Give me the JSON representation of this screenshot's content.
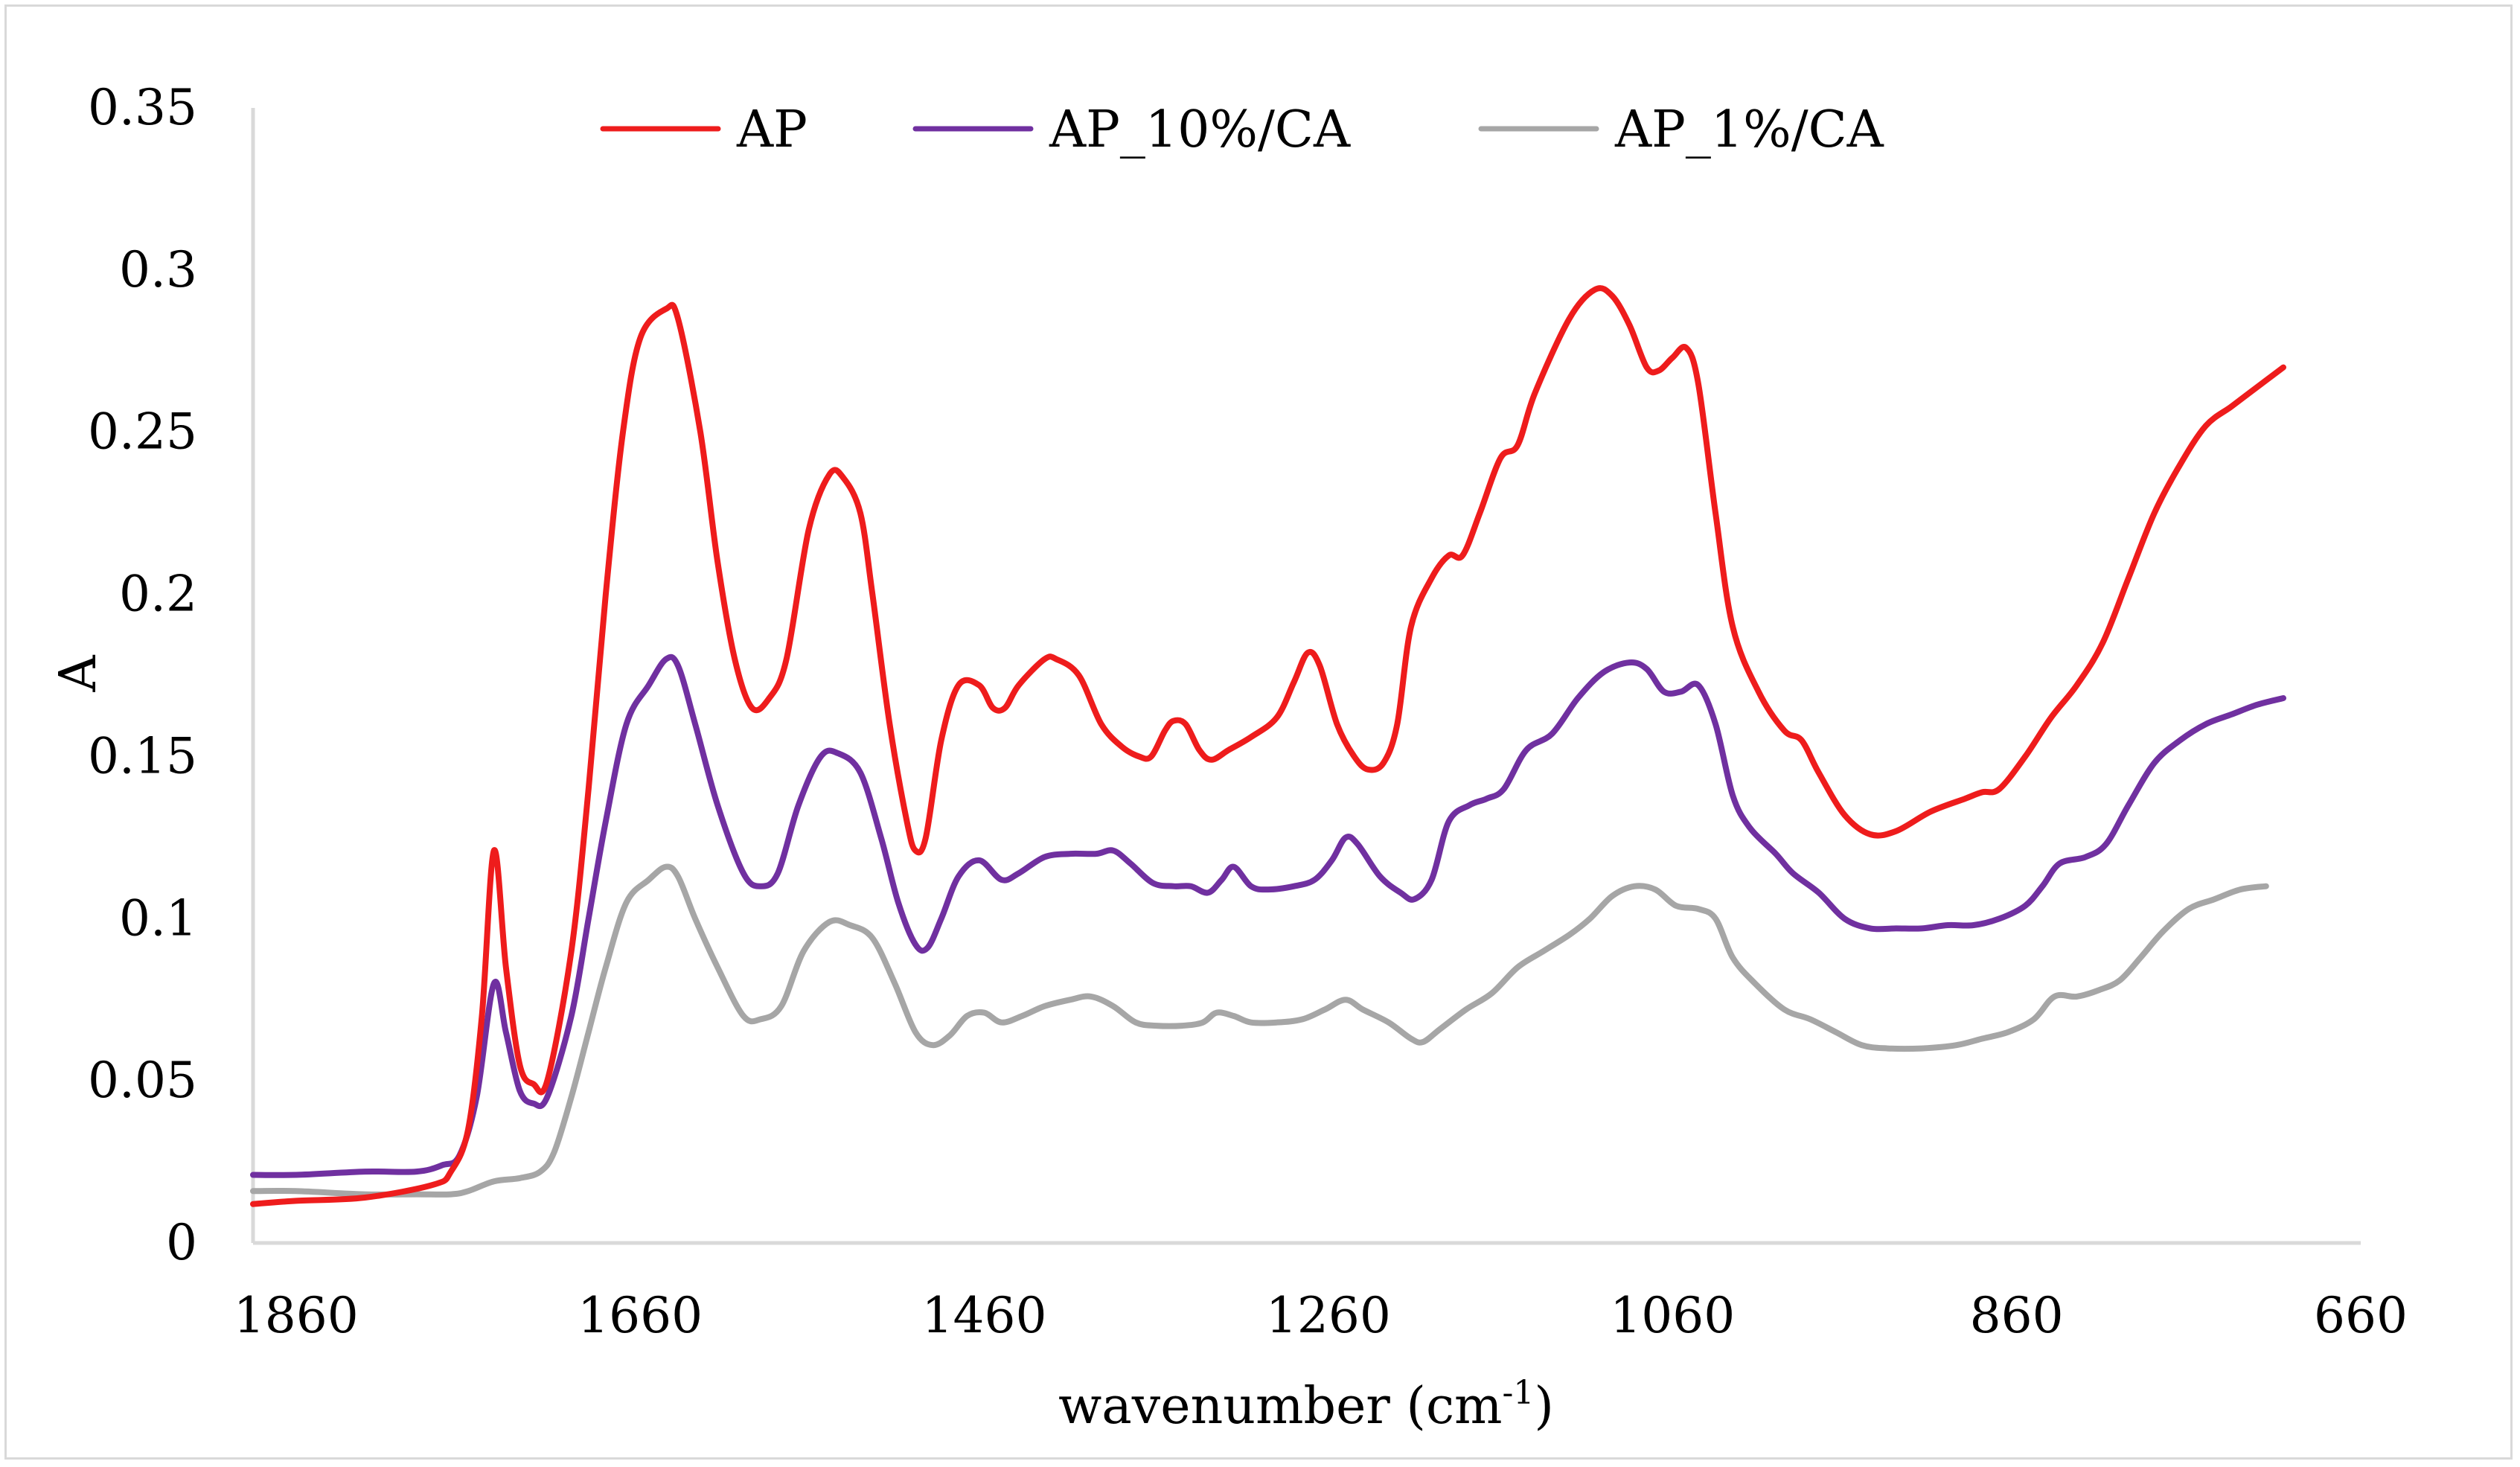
{
  "chart_data": {
    "type": "line",
    "title": "",
    "xlabel": "wavenumber (cm",
    "xlabel_sup": "-1",
    "xlabel_close": ")",
    "ylabel": "A",
    "xlim": [
      1885,
      660
    ],
    "ylim": [
      0,
      0.35
    ],
    "x_reversed": true,
    "grid": false,
    "legend_position": "top",
    "x_ticks": [
      1860,
      1660,
      1460,
      1260,
      1060,
      860,
      660
    ],
    "y_ticks": [
      0,
      0.05,
      0.1,
      0.15,
      0.2,
      0.25,
      0.3,
      0.35
    ],
    "y_tick_labels": [
      "0",
      "0.05",
      "0.1",
      "0.15",
      "0.2",
      "0.25",
      "0.3",
      "0.35"
    ],
    "series": [
      {
        "name": "AP",
        "color": "#ee1c1c",
        "points": [
          [
            1885,
            0.012
          ],
          [
            1860,
            0.013
          ],
          [
            1820,
            0.014
          ],
          [
            1780,
            0.018
          ],
          [
            1770,
            0.022
          ],
          [
            1760,
            0.035
          ],
          [
            1752,
            0.07
          ],
          [
            1745,
            0.121
          ],
          [
            1738,
            0.085
          ],
          [
            1730,
            0.055
          ],
          [
            1722,
            0.049
          ],
          [
            1714,
            0.05
          ],
          [
            1700,
            0.09
          ],
          [
            1690,
            0.14
          ],
          [
            1680,
            0.2
          ],
          [
            1670,
            0.25
          ],
          [
            1660,
            0.279
          ],
          [
            1645,
            0.288
          ],
          [
            1638,
            0.285
          ],
          [
            1625,
            0.25
          ],
          [
            1615,
            0.21
          ],
          [
            1605,
            0.18
          ],
          [
            1595,
            0.165
          ],
          [
            1585,
            0.168
          ],
          [
            1575,
            0.18
          ],
          [
            1562,
            0.22
          ],
          [
            1550,
            0.237
          ],
          [
            1542,
            0.236
          ],
          [
            1532,
            0.225
          ],
          [
            1525,
            0.2
          ],
          [
            1515,
            0.16
          ],
          [
            1505,
            0.13
          ],
          [
            1500,
            0.121
          ],
          [
            1494,
            0.125
          ],
          [
            1485,
            0.155
          ],
          [
            1475,
            0.172
          ],
          [
            1463,
            0.172
          ],
          [
            1455,
            0.165
          ],
          [
            1448,
            0.165
          ],
          [
            1440,
            0.172
          ],
          [
            1425,
            0.18
          ],
          [
            1418,
            0.18
          ],
          [
            1405,
            0.175
          ],
          [
            1392,
            0.16
          ],
          [
            1380,
            0.153
          ],
          [
            1370,
            0.15
          ],
          [
            1363,
            0.15
          ],
          [
            1355,
            0.158
          ],
          [
            1350,
            0.161
          ],
          [
            1343,
            0.16
          ],
          [
            1335,
            0.152
          ],
          [
            1328,
            0.149
          ],
          [
            1318,
            0.152
          ],
          [
            1305,
            0.156
          ],
          [
            1290,
            0.162
          ],
          [
            1280,
            0.173
          ],
          [
            1272,
            0.182
          ],
          [
            1265,
            0.178
          ],
          [
            1255,
            0.16
          ],
          [
            1245,
            0.15
          ],
          [
            1237,
            0.146
          ],
          [
            1228,
            0.148
          ],
          [
            1220,
            0.16
          ],
          [
            1212,
            0.19
          ],
          [
            1200,
            0.205
          ],
          [
            1190,
            0.212
          ],
          [
            1182,
            0.212
          ],
          [
            1172,
            0.225
          ],
          [
            1160,
            0.242
          ],
          [
            1150,
            0.246
          ],
          [
            1140,
            0.262
          ],
          [
            1120,
            0.285
          ],
          [
            1105,
            0.294
          ],
          [
            1095,
            0.292
          ],
          [
            1085,
            0.283
          ],
          [
            1075,
            0.27
          ],
          [
            1068,
            0.269
          ],
          [
            1060,
            0.273
          ],
          [
            1052,
            0.276
          ],
          [
            1045,
            0.265
          ],
          [
            1035,
            0.225
          ],
          [
            1025,
            0.19
          ],
          [
            1010,
            0.17
          ],
          [
            995,
            0.158
          ],
          [
            985,
            0.155
          ],
          [
            975,
            0.145
          ],
          [
            960,
            0.132
          ],
          [
            945,
            0.126
          ],
          [
            930,
            0.127
          ],
          [
            910,
            0.133
          ],
          [
            890,
            0.137
          ],
          [
            880,
            0.139
          ],
          [
            870,
            0.14
          ],
          [
            855,
            0.15
          ],
          [
            840,
            0.162
          ],
          [
            825,
            0.172
          ],
          [
            810,
            0.185
          ],
          [
            795,
            0.205
          ],
          [
            780,
            0.225
          ],
          [
            765,
            0.24
          ],
          [
            750,
            0.252
          ],
          [
            735,
            0.258
          ],
          [
            720,
            0.264
          ],
          [
            705,
            0.27
          ]
        ]
      },
      {
        "name": "AP_10%/CA",
        "color": "#7030a0",
        "points": [
          [
            1885,
            0.021
          ],
          [
            1860,
            0.021
          ],
          [
            1820,
            0.022
          ],
          [
            1790,
            0.022
          ],
          [
            1775,
            0.024
          ],
          [
            1765,
            0.027
          ],
          [
            1755,
            0.045
          ],
          [
            1745,
            0.08
          ],
          [
            1738,
            0.065
          ],
          [
            1730,
            0.047
          ],
          [
            1722,
            0.043
          ],
          [
            1714,
            0.045
          ],
          [
            1700,
            0.07
          ],
          [
            1690,
            0.1
          ],
          [
            1680,
            0.13
          ],
          [
            1668,
            0.16
          ],
          [
            1655,
            0.172
          ],
          [
            1645,
            0.18
          ],
          [
            1638,
            0.178
          ],
          [
            1628,
            0.16
          ],
          [
            1615,
            0.135
          ],
          [
            1600,
            0.114
          ],
          [
            1590,
            0.11
          ],
          [
            1580,
            0.114
          ],
          [
            1568,
            0.135
          ],
          [
            1555,
            0.15
          ],
          [
            1545,
            0.151
          ],
          [
            1532,
            0.145
          ],
          [
            1520,
            0.125
          ],
          [
            1510,
            0.105
          ],
          [
            1500,
            0.092
          ],
          [
            1493,
            0.091
          ],
          [
            1485,
            0.1
          ],
          [
            1475,
            0.113
          ],
          [
            1463,
            0.118
          ],
          [
            1450,
            0.112
          ],
          [
            1440,
            0.114
          ],
          [
            1425,
            0.119
          ],
          [
            1410,
            0.12
          ],
          [
            1395,
            0.12
          ],
          [
            1385,
            0.121
          ],
          [
            1375,
            0.117
          ],
          [
            1362,
            0.111
          ],
          [
            1350,
            0.11
          ],
          [
            1340,
            0.11
          ],
          [
            1330,
            0.108
          ],
          [
            1322,
            0.112
          ],
          [
            1315,
            0.116
          ],
          [
            1305,
            0.11
          ],
          [
            1295,
            0.109
          ],
          [
            1280,
            0.11
          ],
          [
            1268,
            0.112
          ],
          [
            1258,
            0.118
          ],
          [
            1250,
            0.125
          ],
          [
            1243,
            0.123
          ],
          [
            1230,
            0.113
          ],
          [
            1218,
            0.108
          ],
          [
            1210,
            0.106
          ],
          [
            1200,
            0.112
          ],
          [
            1190,
            0.13
          ],
          [
            1178,
            0.135
          ],
          [
            1168,
            0.137
          ],
          [
            1158,
            0.14
          ],
          [
            1145,
            0.152
          ],
          [
            1130,
            0.157
          ],
          [
            1115,
            0.168
          ],
          [
            1100,
            0.176
          ],
          [
            1085,
            0.179
          ],
          [
            1075,
            0.177
          ],
          [
            1065,
            0.17
          ],
          [
            1055,
            0.17
          ],
          [
            1045,
            0.172
          ],
          [
            1035,
            0.16
          ],
          [
            1025,
            0.138
          ],
          [
            1015,
            0.128
          ],
          [
            1000,
            0.12
          ],
          [
            990,
            0.114
          ],
          [
            975,
            0.108
          ],
          [
            960,
            0.1
          ],
          [
            945,
            0.097
          ],
          [
            930,
            0.097
          ],
          [
            915,
            0.097
          ],
          [
            900,
            0.098
          ],
          [
            885,
            0.098
          ],
          [
            870,
            0.1
          ],
          [
            855,
            0.104
          ],
          [
            845,
            0.11
          ],
          [
            835,
            0.117
          ],
          [
            820,
            0.119
          ],
          [
            808,
            0.123
          ],
          [
            795,
            0.135
          ],
          [
            780,
            0.148
          ],
          [
            765,
            0.155
          ],
          [
            750,
            0.16
          ],
          [
            735,
            0.163
          ],
          [
            720,
            0.166
          ],
          [
            705,
            0.168
          ]
        ]
      },
      {
        "name": "AP_1%/CA",
        "color": "#a6a6a6",
        "points": [
          [
            1885,
            0.016
          ],
          [
            1860,
            0.016
          ],
          [
            1820,
            0.015
          ],
          [
            1790,
            0.015
          ],
          [
            1770,
            0.015
          ],
          [
            1760,
            0.016
          ],
          [
            1745,
            0.019
          ],
          [
            1730,
            0.02
          ],
          [
            1718,
            0.022
          ],
          [
            1710,
            0.028
          ],
          [
            1700,
            0.045
          ],
          [
            1690,
            0.065
          ],
          [
            1680,
            0.085
          ],
          [
            1668,
            0.105
          ],
          [
            1655,
            0.112
          ],
          [
            1645,
            0.116
          ],
          [
            1638,
            0.113
          ],
          [
            1628,
            0.1
          ],
          [
            1615,
            0.085
          ],
          [
            1600,
            0.07
          ],
          [
            1590,
            0.069
          ],
          [
            1578,
            0.073
          ],
          [
            1565,
            0.09
          ],
          [
            1550,
            0.099
          ],
          [
            1538,
            0.098
          ],
          [
            1525,
            0.094
          ],
          [
            1512,
            0.08
          ],
          [
            1500,
            0.065
          ],
          [
            1490,
            0.061
          ],
          [
            1480,
            0.064
          ],
          [
            1470,
            0.07
          ],
          [
            1460,
            0.071
          ],
          [
            1450,
            0.068
          ],
          [
            1438,
            0.07
          ],
          [
            1425,
            0.073
          ],
          [
            1410,
            0.075
          ],
          [
            1398,
            0.076
          ],
          [
            1385,
            0.073
          ],
          [
            1372,
            0.068
          ],
          [
            1360,
            0.067
          ],
          [
            1345,
            0.067
          ],
          [
            1333,
            0.068
          ],
          [
            1325,
            0.071
          ],
          [
            1315,
            0.07
          ],
          [
            1305,
            0.068
          ],
          [
            1290,
            0.068
          ],
          [
            1275,
            0.069
          ],
          [
            1262,
            0.072
          ],
          [
            1250,
            0.075
          ],
          [
            1240,
            0.072
          ],
          [
            1225,
            0.068
          ],
          [
            1212,
            0.063
          ],
          [
            1205,
            0.062
          ],
          [
            1195,
            0.066
          ],
          [
            1180,
            0.072
          ],
          [
            1165,
            0.077
          ],
          [
            1150,
            0.085
          ],
          [
            1135,
            0.09
          ],
          [
            1120,
            0.095
          ],
          [
            1108,
            0.1
          ],
          [
            1095,
            0.107
          ],
          [
            1082,
            0.11
          ],
          [
            1070,
            0.109
          ],
          [
            1058,
            0.104
          ],
          [
            1045,
            0.103
          ],
          [
            1035,
            0.1
          ],
          [
            1025,
            0.088
          ],
          [
            1012,
            0.08
          ],
          [
            995,
            0.072
          ],
          [
            980,
            0.069
          ],
          [
            965,
            0.065
          ],
          [
            950,
            0.061
          ],
          [
            935,
            0.06
          ],
          [
            915,
            0.06
          ],
          [
            895,
            0.061
          ],
          [
            880,
            0.063
          ],
          [
            865,
            0.065
          ],
          [
            850,
            0.069
          ],
          [
            838,
            0.076
          ],
          [
            825,
            0.076
          ],
          [
            812,
            0.078
          ],
          [
            800,
            0.081
          ],
          [
            788,
            0.088
          ],
          [
            775,
            0.096
          ],
          [
            760,
            0.103
          ],
          [
            745,
            0.106
          ],
          [
            730,
            0.109
          ],
          [
            715,
            0.11
          ]
        ]
      }
    ]
  }
}
